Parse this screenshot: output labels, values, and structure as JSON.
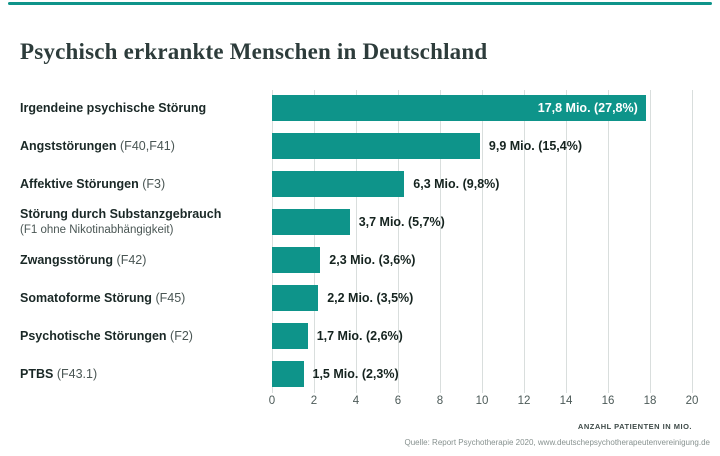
{
  "colors": {
    "accent": "#0E948A",
    "grid": "#D9DEDD",
    "title_text": "#2D3C3B",
    "label_text": "#1A2826",
    "label_code_text": "#4A5654",
    "value_text": "#15231F",
    "value_inside_text": "#FFFFFF",
    "tick_text": "#4C5A58",
    "source_text": "#87918F"
  },
  "title": "Psychisch erkrankte Menschen in Deutschland",
  "chart_data": {
    "type": "bar",
    "orientation": "horizontal",
    "title": "Psychisch erkrankte Menschen in Deutschland",
    "categories": [
      "Irgendeine psychische Störung",
      "Angststörungen (F40,F41)",
      "Affektive Störungen (F3)",
      "Störung durch Substanzgebrauch (F1 ohne Nikotinabhängigkeit)",
      "Zwangsstörung (F42)",
      "Somatoforme Störung (F45)",
      "Psychotische Störungen (F2)",
      "PTBS (F43.1)"
    ],
    "values": [
      17.8,
      9.9,
      6.3,
      3.7,
      2.3,
      2.2,
      1.7,
      1.5
    ],
    "percentages": [
      27.8,
      15.4,
      9.8,
      5.7,
      3.6,
      3.5,
      2.6,
      2.3
    ],
    "value_labels": [
      "17,8 Mio. (27,8%)",
      "9,9 Mio. (15,4%)",
      "6,3 Mio. (9,8%)",
      "3,7 Mio. (5,7%)",
      "2,3 Mio. (3,6%)",
      "2,2 Mio. (3,5%)",
      "1,7 Mio. (2,6%)",
      "1,5 Mio. (2,3%)"
    ],
    "xlabel": "ANZAHL PATIENTEN IN MIO.",
    "xlim": [
      0,
      20
    ],
    "xticks": [
      0,
      2,
      4,
      6,
      8,
      10,
      12,
      14,
      16,
      18,
      20
    ],
    "grid": true,
    "legend": false,
    "bar_color": "#0E948A"
  },
  "rows": [
    {
      "label": "Irgendeine psychische Störung",
      "code": "",
      "sublabel": "",
      "value_label": "17,8 Mio. (27,8%)",
      "label_inside": true
    },
    {
      "label": "Angststörungen",
      "code": "(F40,F41)",
      "sublabel": "",
      "value_label": "9,9 Mio. (15,4%)",
      "label_inside": false
    },
    {
      "label": "Affektive Störungen",
      "code": "(F3)",
      "sublabel": "",
      "value_label": "6,3 Mio. (9,8%)",
      "label_inside": false
    },
    {
      "label": "Störung durch Substanzgebrauch",
      "code": "",
      "sublabel": "(F1 ohne Nikotinabhängigkeit)",
      "value_label": "3,7 Mio. (5,7%)",
      "label_inside": false
    },
    {
      "label": "Zwangsstörung",
      "code": "(F42)",
      "sublabel": "",
      "value_label": "2,3 Mio. (3,6%)",
      "label_inside": false
    },
    {
      "label": "Somatoforme Störung",
      "code": "(F45)",
      "sublabel": "",
      "value_label": "2,2 Mio. (3,5%)",
      "label_inside": false
    },
    {
      "label": "Psychotische Störungen",
      "code": "(F2)",
      "sublabel": "",
      "value_label": "1,7 Mio. (2,6%)",
      "label_inside": false
    },
    {
      "label": "PTBS",
      "code": "(F43.1)",
      "sublabel": "",
      "value_label": "1,5 Mio. (2,3%)",
      "label_inside": false
    }
  ],
  "axis_caption": "ANZAHL PATIENTEN IN MIO.",
  "source": "Quelle: Report Psychotherapie 2020, www.deutschepsychotherapeutenvereinigung.de"
}
